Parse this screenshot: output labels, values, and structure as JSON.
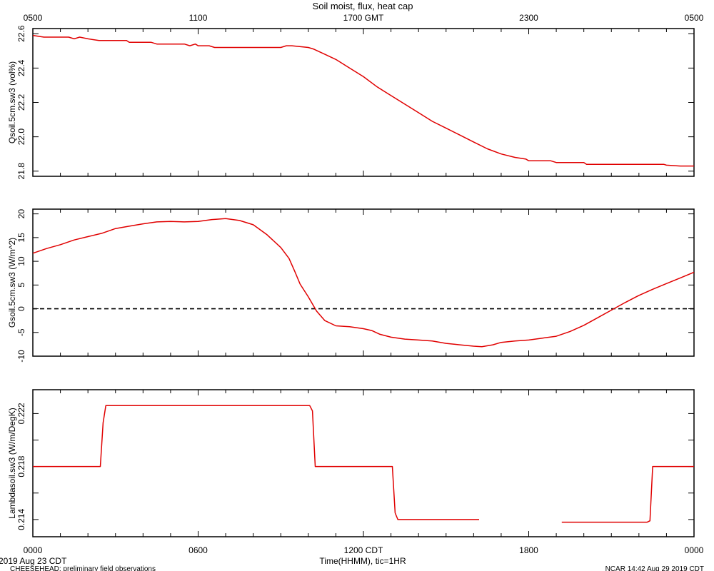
{
  "chart_data": {
    "type": "line",
    "title": "Soil moist, flux, heat cap",
    "x_bottom": {
      "label": "Time(HHMM), tic=1HR",
      "range_hours": [
        0,
        24
      ],
      "tick_labels": [
        {
          "hour": 0,
          "label": "0000"
        },
        {
          "hour": 6,
          "label": "0600"
        },
        {
          "hour": 12,
          "label": "1200 CDT"
        },
        {
          "hour": 18,
          "label": "1800"
        },
        {
          "hour": 24,
          "label": "0000"
        }
      ]
    },
    "x_top": {
      "tick_labels": [
        {
          "hour": 0,
          "label": "0500"
        },
        {
          "hour": 6,
          "label": "1100"
        },
        {
          "hour": 12,
          "label": "1700 GMT"
        },
        {
          "hour": 18,
          "label": "2300"
        },
        {
          "hour": 24,
          "label": "0500"
        }
      ]
    },
    "panels": [
      {
        "ylabel": "Qsoil.5cm.sw3 (vol%)",
        "ylim": [
          21.77,
          22.63
        ],
        "yticks": [
          21.8,
          22.0,
          22.2,
          22.4,
          22.6
        ],
        "ytick_labels": [
          "21.8",
          "22.0",
          "22.2",
          "22.4",
          "22.6"
        ],
        "zero_line": false,
        "series": [
          {
            "color": "#e00000",
            "points": [
              [
                0,
                22.59
              ],
              [
                0.4,
                22.58
              ],
              [
                1.3,
                22.58
              ],
              [
                1.5,
                22.57
              ],
              [
                1.7,
                22.58
              ],
              [
                2.0,
                22.57
              ],
              [
                2.4,
                22.56
              ],
              [
                3.4,
                22.56
              ],
              [
                3.5,
                22.55
              ],
              [
                4.3,
                22.55
              ],
              [
                4.5,
                22.54
              ],
              [
                5.5,
                22.54
              ],
              [
                5.7,
                22.53
              ],
              [
                5.9,
                22.54
              ],
              [
                6.0,
                22.53
              ],
              [
                6.4,
                22.53
              ],
              [
                6.6,
                22.52
              ],
              [
                7.0,
                22.52
              ],
              [
                7.2,
                22.52
              ],
              [
                8.0,
                22.52
              ],
              [
                9.0,
                22.52
              ],
              [
                9.2,
                22.53
              ],
              [
                9.4,
                22.53
              ],
              [
                10.0,
                22.52
              ],
              [
                10.2,
                22.51
              ],
              [
                10.6,
                22.48
              ],
              [
                11.0,
                22.45
              ],
              [
                11.5,
                22.4
              ],
              [
                12.0,
                22.35
              ],
              [
                12.5,
                22.29
              ],
              [
                13.0,
                22.24
              ],
              [
                13.5,
                22.19
              ],
              [
                14.0,
                22.14
              ],
              [
                14.5,
                22.09
              ],
              [
                15.0,
                22.05
              ],
              [
                15.5,
                22.01
              ],
              [
                16.0,
                21.97
              ],
              [
                16.5,
                21.93
              ],
              [
                17.0,
                21.9
              ],
              [
                17.5,
                21.88
              ],
              [
                17.9,
                21.87
              ],
              [
                18.0,
                21.86
              ],
              [
                18.3,
                21.86
              ],
              [
                18.8,
                21.86
              ],
              [
                19.0,
                21.85
              ],
              [
                19.5,
                21.85
              ],
              [
                20.0,
                21.85
              ],
              [
                20.1,
                21.84
              ],
              [
                21.0,
                21.84
              ],
              [
                22.0,
                21.84
              ],
              [
                22.9,
                21.84
              ],
              [
                23.0,
                21.835
              ],
              [
                23.5,
                21.83
              ],
              [
                24.0,
                21.83
              ]
            ]
          }
        ]
      },
      {
        "ylabel": "Gsoil.5cm.sw3 (W/m^2)",
        "ylim": [
          -10,
          21
        ],
        "yticks": [
          -10,
          -5,
          0,
          5,
          10,
          15,
          20
        ],
        "ytick_labels": [
          "-10",
          "-5",
          "0",
          "5",
          "10",
          "15",
          "20"
        ],
        "zero_line": true,
        "series": [
          {
            "color": "#e00000",
            "points": [
              [
                0,
                11.7
              ],
              [
                0.5,
                12.7
              ],
              [
                1.0,
                13.5
              ],
              [
                1.5,
                14.5
              ],
              [
                2.0,
                15.2
              ],
              [
                2.5,
                15.9
              ],
              [
                3.0,
                16.9
              ],
              [
                3.5,
                17.4
              ],
              [
                4.0,
                17.9
              ],
              [
                4.5,
                18.3
              ],
              [
                5.0,
                18.4
              ],
              [
                5.5,
                18.3
              ],
              [
                6.0,
                18.4
              ],
              [
                6.5,
                18.8
              ],
              [
                7.0,
                19.0
              ],
              [
                7.5,
                18.6
              ],
              [
                8.0,
                17.7
              ],
              [
                8.5,
                15.6
              ],
              [
                9.0,
                12.9
              ],
              [
                9.3,
                10.6
              ],
              [
                9.5,
                8.0
              ],
              [
                9.7,
                5.2
              ],
              [
                10.0,
                2.5
              ],
              [
                10.3,
                -0.5
              ],
              [
                10.6,
                -2.5
              ],
              [
                11.0,
                -3.6
              ],
              [
                11.5,
                -3.8
              ],
              [
                12.0,
                -4.2
              ],
              [
                12.3,
                -4.6
              ],
              [
                12.6,
                -5.4
              ],
              [
                13.0,
                -6.0
              ],
              [
                13.5,
                -6.4
              ],
              [
                14.0,
                -6.6
              ],
              [
                14.5,
                -6.8
              ],
              [
                15.0,
                -7.3
              ],
              [
                15.5,
                -7.6
              ],
              [
                16.0,
                -7.9
              ],
              [
                16.3,
                -8.0
              ],
              [
                16.7,
                -7.6
              ],
              [
                17.0,
                -7.1
              ],
              [
                17.5,
                -6.8
              ],
              [
                18.0,
                -6.6
              ],
              [
                18.5,
                -6.2
              ],
              [
                19.0,
                -5.8
              ],
              [
                19.5,
                -4.8
              ],
              [
                20.0,
                -3.5
              ],
              [
                20.5,
                -1.9
              ],
              [
                21.0,
                -0.3
              ],
              [
                21.5,
                1.3
              ],
              [
                22.0,
                2.8
              ],
              [
                22.5,
                4.1
              ],
              [
                23.0,
                5.3
              ],
              [
                23.5,
                6.5
              ],
              [
                24.0,
                7.7
              ]
            ]
          }
        ]
      },
      {
        "ylabel": "Lambdasoil.sw3 (W/m/DegK)",
        "ylim": [
          0.2127,
          0.2238
        ],
        "yticks": [
          0.214,
          0.216,
          0.218,
          0.22,
          0.222
        ],
        "ytick_labels": [
          "0.214",
          "",
          "0.218",
          "",
          "0.222"
        ],
        "zero_line": false,
        "series": [
          {
            "color": "#e00000",
            "points": [
              [
                0,
                0.218
              ],
              [
                2.45,
                0.218
              ],
              [
                2.55,
                0.2213
              ],
              [
                2.65,
                0.2226
              ],
              [
                7.5,
                0.2226
              ],
              [
                10.05,
                0.2226
              ],
              [
                10.15,
                0.2222
              ],
              [
                10.25,
                0.218
              ],
              [
                13.05,
                0.218
              ],
              [
                13.15,
                0.2145
              ],
              [
                13.25,
                0.214
              ],
              [
                16.2,
                0.214
              ]
            ]
          },
          {
            "color": "#e00000",
            "points": [
              [
                19.2,
                0.2138
              ],
              [
                22.3,
                0.2138
              ],
              [
                22.4,
                0.2139
              ],
              [
                22.5,
                0.218
              ],
              [
                24.0,
                0.218
              ]
            ]
          }
        ]
      }
    ]
  },
  "footer": {
    "date_left": "2019 Aug 23 CDT",
    "project": "CHEESEHEAD: preliminary field observations",
    "credit_right": "NCAR 14:42 Aug 29 2019 CDT"
  }
}
